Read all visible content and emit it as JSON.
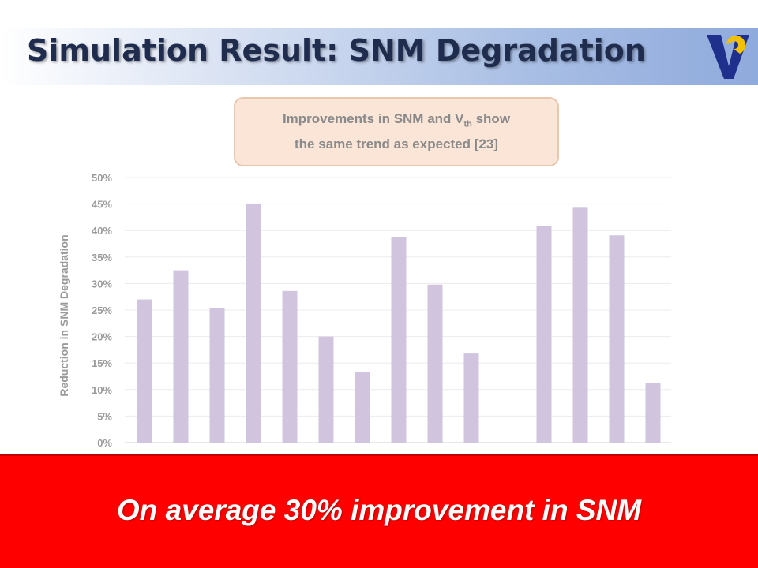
{
  "slide": {
    "title": "Simulation Result: SNM Degradation",
    "callout_line1_pre": "Improvements in SNM and V",
    "callout_line1_sub": "th",
    "callout_line1_post": " show",
    "callout_line2": "the same trend as expected [23]",
    "footer": "On average 30% improvement in SNM"
  },
  "colors": {
    "bar": "#d0c4df",
    "footer_bg": "#ff0000",
    "title_text": "#1f2c4d",
    "callout_bg": "#fbe5d6"
  },
  "chart_data": {
    "type": "bar",
    "ylabel": "Reduction  in SNM Degradation",
    "ylim": [
      0,
      50
    ],
    "yticks": [
      "0%",
      "5%",
      "10%",
      "15%",
      "20%",
      "25%",
      "30%",
      "35%",
      "40%",
      "45%",
      "50%"
    ],
    "values": [
      27,
      32.5,
      25.4,
      45.1,
      28.6,
      20,
      13.4,
      38.7,
      29.8,
      16.8,
      null,
      40.9,
      44.3,
      39.1,
      11.2
    ],
    "grid": true
  }
}
